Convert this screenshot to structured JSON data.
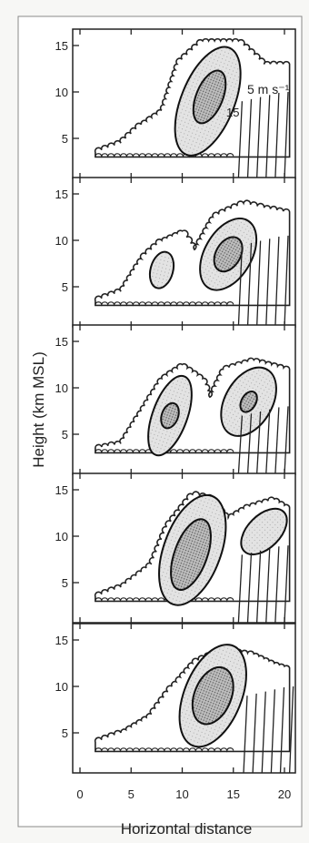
{
  "panels": [
    {
      "yticks": [
        "15",
        "10",
        "5"
      ]
    },
    {
      "yticks": [
        "15",
        "10",
        "5"
      ]
    },
    {
      "yticks": [
        "15",
        "10",
        "5"
      ]
    },
    {
      "yticks": [
        "15",
        "10",
        "5"
      ]
    },
    {
      "yticks": [
        "15",
        "10",
        "5"
      ]
    }
  ],
  "annotations": [
    "5 m s⁻¹",
    "15"
  ],
  "x_axis": {
    "ticks": [
      "0",
      "5",
      "10",
      "15",
      "20"
    ],
    "label": "Horizontal distance"
  },
  "y_axis": {
    "label": "Height (km MSL)"
  }
}
